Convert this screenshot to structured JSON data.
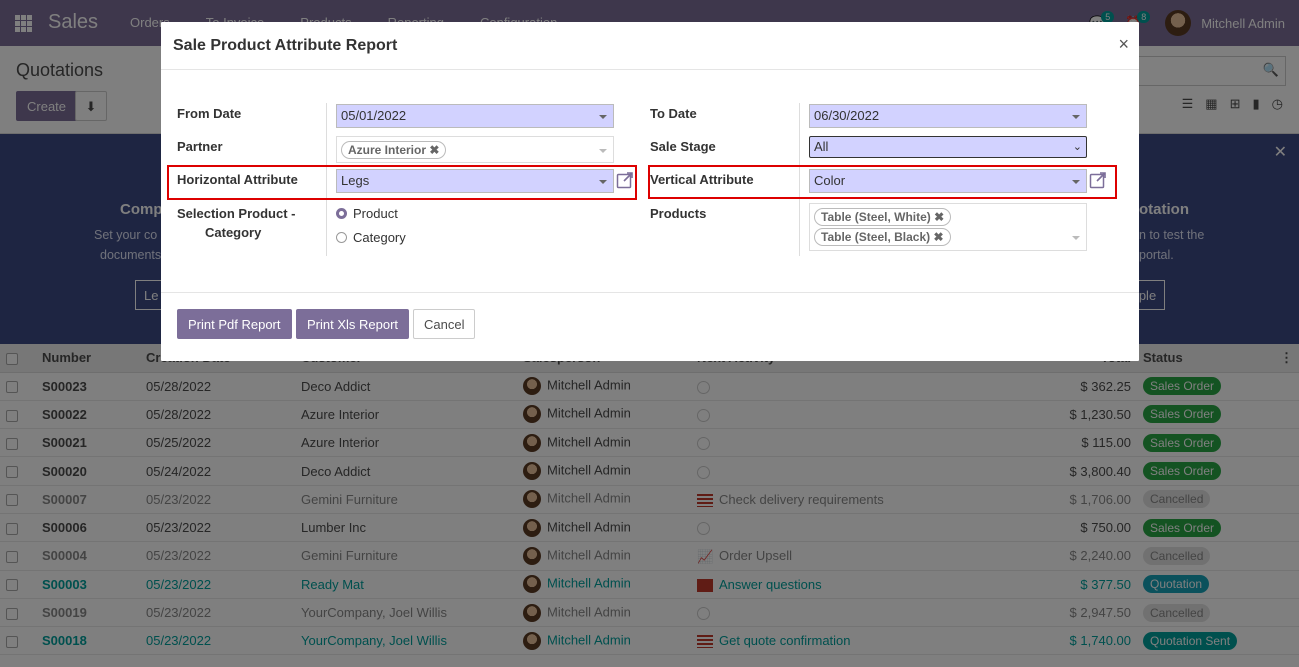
{
  "nav": {
    "brand": "Sales",
    "menu": [
      "Orders",
      "To Invoice",
      "Products",
      "Reporting",
      "Configuration"
    ],
    "msg_count": "5",
    "activity_count": "8",
    "user": "Mitchell Admin"
  },
  "control": {
    "title": "Quotations",
    "create_label": "Create"
  },
  "banner": {
    "left_title": "Comp",
    "left_lines": [
      "Set your co",
      "documents"
    ],
    "left_btn": "Le",
    "right_title": "otation",
    "right_lines": [
      "n to test the",
      "portal."
    ],
    "right_btn": "mple"
  },
  "table": {
    "headers": [
      "Number",
      "Creation Date",
      "Customer",
      "Salesperson",
      "Next Activity",
      "Total",
      "Status"
    ],
    "rows": [
      {
        "number": "S00023",
        "date": "05/28/2022",
        "customer": "Deco Addict",
        "salesperson": "Mitchell Admin",
        "activity": "",
        "total": "$ 362.25",
        "status": "Sales Order"
      },
      {
        "number": "S00022",
        "date": "05/28/2022",
        "customer": "Azure Interior",
        "salesperson": "Mitchell Admin",
        "activity": "",
        "total": "$ 1,230.50",
        "status": "Sales Order"
      },
      {
        "number": "S00021",
        "date": "05/25/2022",
        "customer": "Azure Interior",
        "salesperson": "Mitchell Admin",
        "activity": "",
        "total": "$ 115.00",
        "status": "Sales Order"
      },
      {
        "number": "S00020",
        "date": "05/24/2022",
        "customer": "Deco Addict",
        "salesperson": "Mitchell Admin",
        "activity": "",
        "total": "$ 3,800.40",
        "status": "Sales Order"
      },
      {
        "number": "S00007",
        "date": "05/23/2022",
        "customer": "Gemini Furniture",
        "salesperson": "Mitchell Admin",
        "activity": "Check delivery requirements",
        "total": "$ 1,706.00",
        "status": "Cancelled"
      },
      {
        "number": "S00006",
        "date": "05/23/2022",
        "customer": "Lumber Inc",
        "salesperson": "Mitchell Admin",
        "activity": "",
        "total": "$ 750.00",
        "status": "Sales Order"
      },
      {
        "number": "S00004",
        "date": "05/23/2022",
        "customer": "Gemini Furniture",
        "salesperson": "Mitchell Admin",
        "activity": "Order Upsell",
        "total": "$ 2,240.00",
        "status": "Cancelled"
      },
      {
        "number": "S00003",
        "date": "05/23/2022",
        "customer": "Ready Mat",
        "salesperson": "Mitchell Admin",
        "activity": "Answer questions",
        "total": "$ 377.50",
        "status": "Quotation"
      },
      {
        "number": "S00019",
        "date": "05/23/2022",
        "customer": "YourCompany, Joel Willis",
        "salesperson": "Mitchell Admin",
        "activity": "",
        "total": "$ 2,947.50",
        "status": "Cancelled"
      },
      {
        "number": "S00018",
        "date": "05/23/2022",
        "customer": "YourCompany, Joel Willis",
        "salesperson": "Mitchell Admin",
        "activity": "Get quote confirmation",
        "total": "$ 1,740.00",
        "status": "Quotation Sent"
      }
    ]
  },
  "modal": {
    "title": "Sale Product Attribute Report",
    "from_date_label": "From Date",
    "from_date": "05/01/2022",
    "to_date_label": "To Date",
    "to_date": "06/30/2022",
    "partner_label": "Partner",
    "partner_tag": "Azure Interior",
    "sale_stage_label": "Sale Stage",
    "sale_stage": "All",
    "h_attr_label": "Horizontal Attribute",
    "h_attr": "Legs",
    "v_attr_label": "Vertical Attribute",
    "v_attr": "Color",
    "selection_label_1": "Selection Product -",
    "selection_label_2": "Category",
    "opt_product": "Product",
    "opt_category": "Category",
    "products_label": "Products",
    "product_tags": [
      "Table (Steel, White)",
      "Table (Steel, Black)"
    ],
    "pdf_btn": "Print Pdf Report",
    "xls_btn": "Print Xls Report",
    "cancel_btn": "Cancel"
  },
  "colors": {
    "brand": "#7c6e99",
    "highlight": "#dd0000",
    "required_field": "#d2d2ff"
  }
}
